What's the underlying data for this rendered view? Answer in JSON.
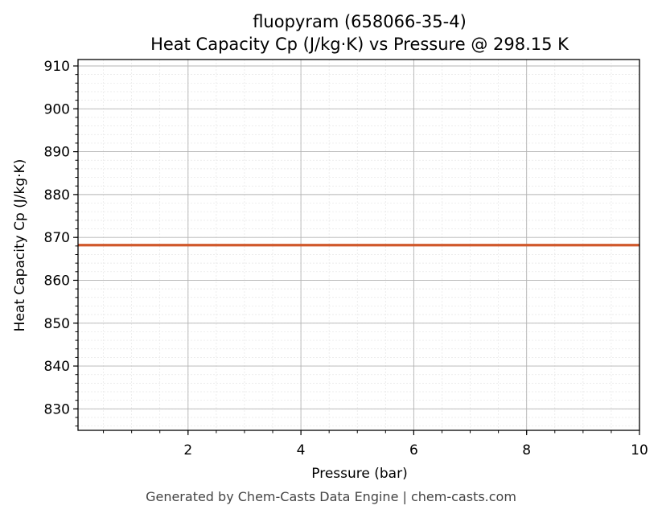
{
  "chart_data": {
    "type": "line",
    "title": "fluopyram (658066-35-4)",
    "subtitle": "Heat Capacity Cp (J/kg·K) vs Pressure @ 298.15 K",
    "xlabel": "Pressure (bar)",
    "ylabel": "Heat Capacity Cp (J/kg·K)",
    "xlim": [
      0.05,
      10
    ],
    "ylim": [
      825,
      911.5
    ],
    "xticks": [
      2,
      4,
      6,
      8,
      10
    ],
    "yticks": [
      830,
      840,
      850,
      860,
      870,
      880,
      890,
      900,
      910
    ],
    "grid": true,
    "series": [
      {
        "color": "#d0582b",
        "x": [
          0.05,
          10
        ],
        "y": [
          868.2,
          868.2
        ]
      }
    ]
  },
  "footer": "Generated by Chem-Casts Data Engine | chem-casts.com"
}
